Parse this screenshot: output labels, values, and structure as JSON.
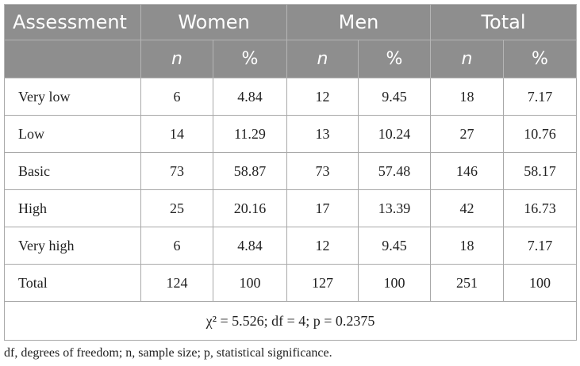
{
  "table": {
    "header": {
      "row_label_heading": "Assessment",
      "groups": [
        "Women",
        "Men",
        "Total"
      ],
      "subheaders": [
        "n",
        "%",
        "n",
        "%",
        "n",
        "%"
      ]
    },
    "rows": [
      {
        "label": "Very low",
        "values": [
          "6",
          "4.84",
          "12",
          "9.45",
          "18",
          "7.17"
        ]
      },
      {
        "label": "Low",
        "values": [
          "14",
          "11.29",
          "13",
          "10.24",
          "27",
          "10.76"
        ]
      },
      {
        "label": "Basic",
        "values": [
          "73",
          "58.87",
          "73",
          "57.48",
          "146",
          "58.17"
        ]
      },
      {
        "label": "High",
        "values": [
          "25",
          "20.16",
          "17",
          "13.39",
          "42",
          "16.73"
        ]
      },
      {
        "label": "Very high",
        "values": [
          "6",
          "4.84",
          "12",
          "9.45",
          "18",
          "7.17"
        ]
      },
      {
        "label": "Total",
        "values": [
          "124",
          "100",
          "127",
          "100",
          "251",
          "100"
        ]
      }
    ],
    "stat_note": "χ² = 5.526; df = 4; p = 0.2375"
  },
  "footnote": "df, degrees of freedom; n, sample size; p, statistical significance."
}
